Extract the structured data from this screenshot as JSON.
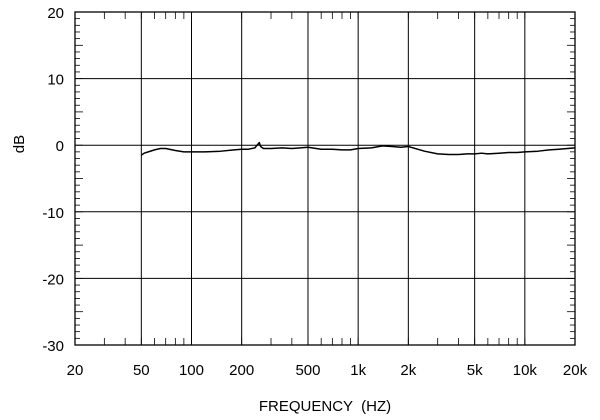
{
  "chart_data": {
    "type": "line",
    "xlabel": "FREQUENCY  (HZ)",
    "ylabel": "dB",
    "x_scale": "log",
    "xlim": [
      20,
      20000
    ],
    "ylim": [
      -30,
      20
    ],
    "grid": true,
    "x_ticks": [
      {
        "value": 20,
        "label": "20"
      },
      {
        "value": 50,
        "label": "50"
      },
      {
        "value": 100,
        "label": "100"
      },
      {
        "value": 200,
        "label": "200"
      },
      {
        "value": 500,
        "label": "500"
      },
      {
        "value": 1000,
        "label": "1k"
      },
      {
        "value": 2000,
        "label": "2k"
      },
      {
        "value": 5000,
        "label": "5k"
      },
      {
        "value": 10000,
        "label": "10k"
      },
      {
        "value": 20000,
        "label": "20k"
      }
    ],
    "y_ticks": [
      {
        "value": 20,
        "label": "20"
      },
      {
        "value": 10,
        "label": "10"
      },
      {
        "value": 0,
        "label": "0"
      },
      {
        "value": -10,
        "label": "-10"
      },
      {
        "value": -20,
        "label": "-20"
      },
      {
        "value": -30,
        "label": "-30"
      }
    ],
    "series": [
      {
        "x": [
          50,
          52,
          55,
          60,
          65,
          70,
          80,
          90,
          100,
          120,
          150,
          180,
          200,
          220,
          240,
          255,
          260,
          270,
          300,
          350,
          400,
          450,
          500,
          600,
          700,
          800,
          900,
          1000,
          1200,
          1400,
          1600,
          1800,
          2000,
          2500,
          3000,
          3500,
          4000,
          4500,
          5000,
          5500,
          6000,
          7000,
          8000,
          9000,
          10000,
          12000,
          14000,
          16000,
          18000,
          20000
        ],
        "y": [
          -1.5,
          -1.2,
          -1.0,
          -0.7,
          -0.5,
          -0.5,
          -0.8,
          -1.0,
          -1.0,
          -1.0,
          -0.9,
          -0.7,
          -0.6,
          -0.6,
          -0.4,
          0.4,
          -0.2,
          -0.5,
          -0.5,
          -0.4,
          -0.5,
          -0.4,
          -0.3,
          -0.6,
          -0.6,
          -0.7,
          -0.7,
          -0.5,
          -0.4,
          -0.1,
          -0.2,
          -0.3,
          -0.2,
          -0.9,
          -1.3,
          -1.4,
          -1.4,
          -1.3,
          -1.3,
          -1.2,
          -1.3,
          -1.2,
          -1.1,
          -1.1,
          -1.0,
          -0.9,
          -0.7,
          -0.6,
          -0.5,
          -0.4
        ]
      }
    ]
  }
}
